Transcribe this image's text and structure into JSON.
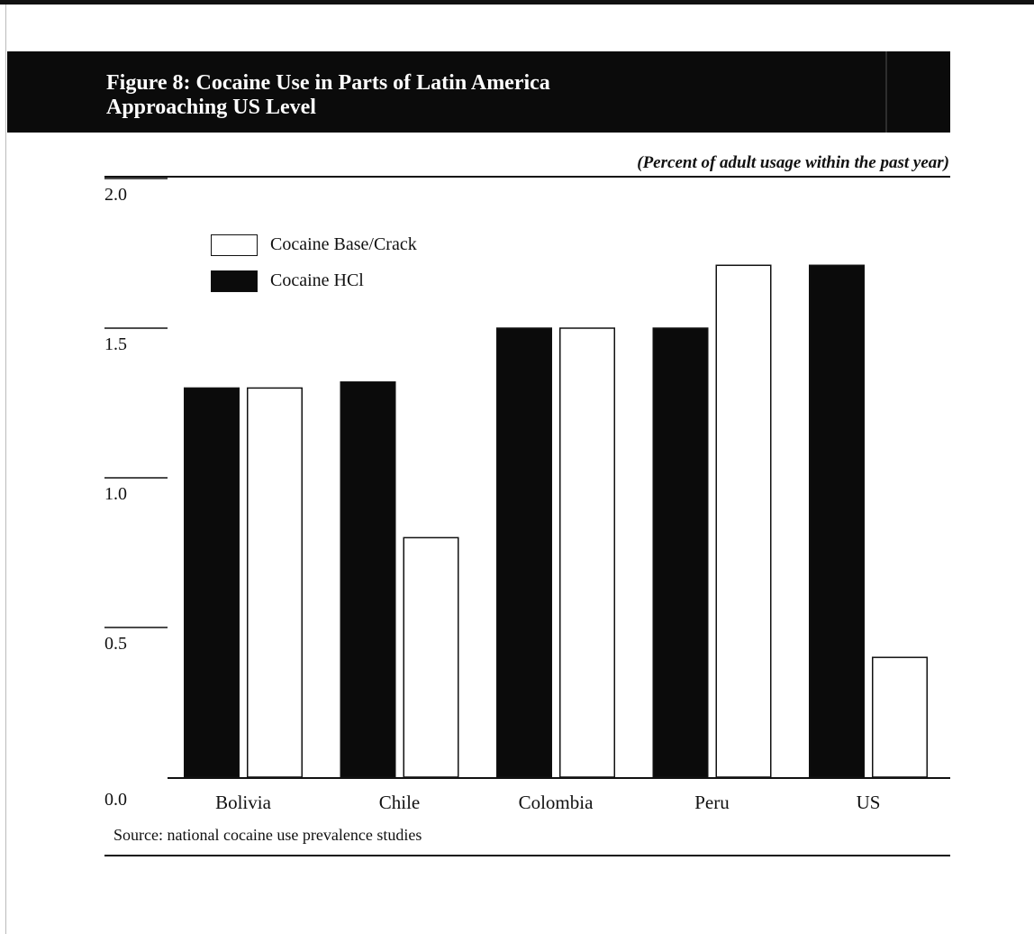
{
  "header": {
    "title_line1": "Figure 8: Cocaine Use in Parts of Latin America",
    "title_line2": "Approaching US Level"
  },
  "chart_data": {
    "type": "bar",
    "title": "Figure 8: Cocaine Use in Parts of Latin America Approaching US Level",
    "subtitle": "(Percent of adult usage within the past year)",
    "categories": [
      "Bolivia",
      "Chile",
      "Colombia",
      "Peru",
      "US"
    ],
    "series": [
      {
        "name": "Cocaine HCl",
        "color": "#0b0b0b",
        "values": [
          1.3,
          1.32,
          1.5,
          1.5,
          1.71
        ]
      },
      {
        "name": "Cocaine Base/Crack",
        "color": "#ffffff",
        "values": [
          1.3,
          0.8,
          1.5,
          1.71,
          0.4
        ]
      }
    ],
    "y_ticks": [
      "0.0",
      "0.5",
      "1.0",
      "1.5",
      "2.0"
    ],
    "ylim": [
      0,
      2.0
    ],
    "legend_position": "top-left",
    "grid": false
  },
  "legend": {
    "items": [
      {
        "label": "Cocaine Base/Crack",
        "style": "light"
      },
      {
        "label": "Cocaine HCl",
        "style": "dark"
      }
    ]
  },
  "footer": {
    "source": "Source: national cocaine use prevalence studies"
  }
}
